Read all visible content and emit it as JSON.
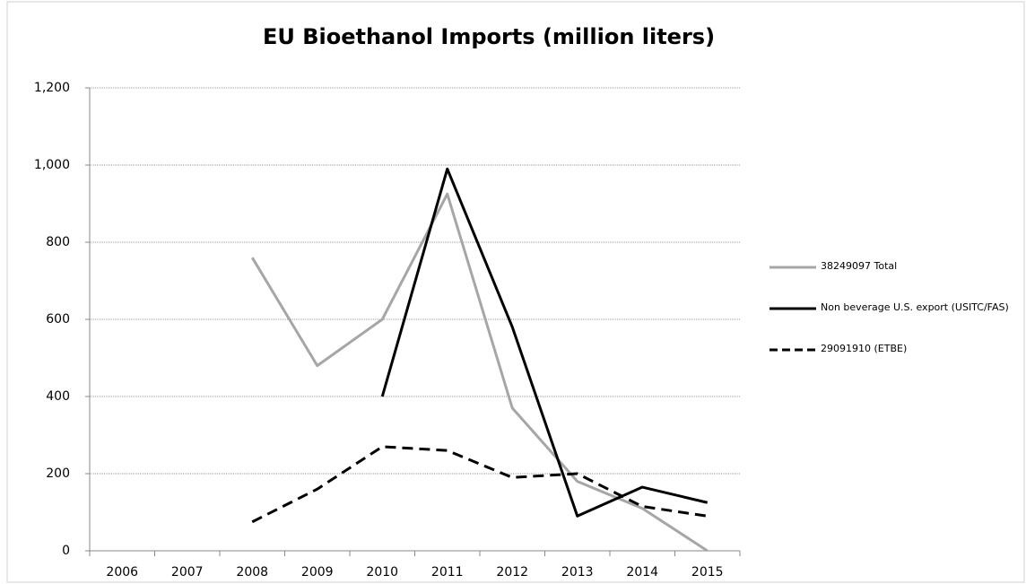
{
  "chart_data": {
    "type": "line",
    "title": "EU Bioethanol Imports (million liters)",
    "categories": [
      "2006",
      "2007",
      "2008",
      "2009",
      "2010",
      "2011",
      "2012",
      "2013",
      "2014",
      "2015"
    ],
    "series": [
      {
        "name": "38249097 Total",
        "color": "#a6a6a6",
        "dash": false,
        "values": [
          null,
          null,
          760,
          480,
          600,
          925,
          370,
          180,
          110,
          0
        ]
      },
      {
        "name": "Non beverage U.S. export (USITC/FAS)",
        "color": "#000000",
        "dash": false,
        "values": [
          null,
          null,
          null,
          null,
          400,
          990,
          580,
          90,
          165,
          125
        ]
      },
      {
        "name": "29091910 (ETBE)",
        "color": "#000000",
        "dash": true,
        "values": [
          null,
          null,
          75,
          160,
          270,
          260,
          190,
          200,
          115,
          90
        ]
      }
    ],
    "ylim": [
      0,
      1200
    ],
    "yticks": [
      0,
      200,
      400,
      600,
      800,
      {
        "value": 1000,
        "label": "1,000"
      },
      {
        "value": 1200,
        "label": "1,200"
      }
    ],
    "grid": true,
    "legend": "right"
  }
}
